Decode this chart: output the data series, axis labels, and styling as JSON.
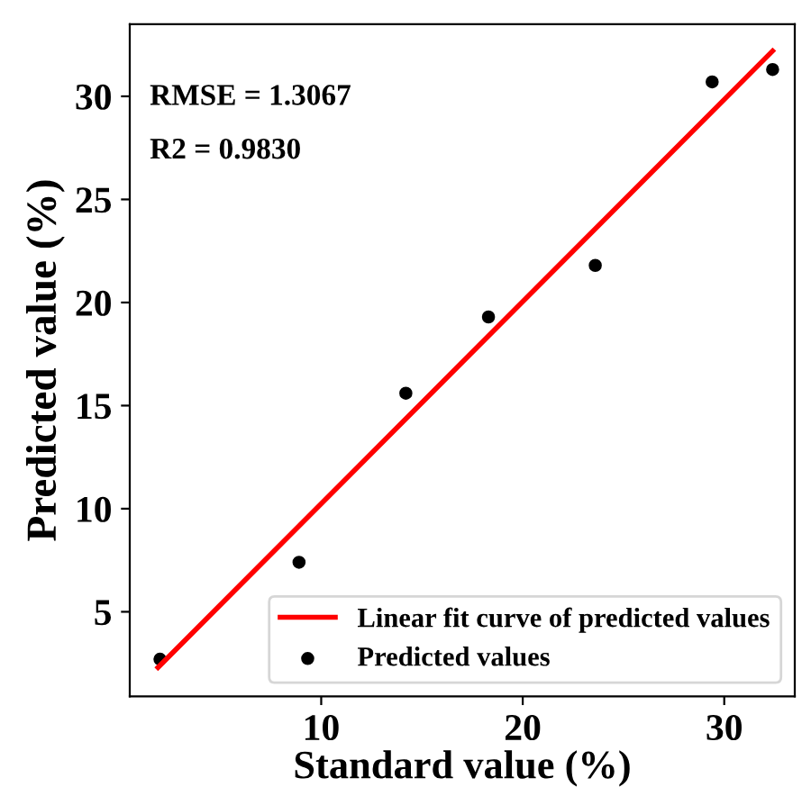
{
  "chart_data": {
    "type": "scatter",
    "xlabel": "Standard value (%)",
    "ylabel": "Predicted value (%)",
    "annotations": [
      "RMSE = 1.3067",
      "R2 = 0.9830"
    ],
    "series": [
      {
        "name": "Linear fit curve of predicted values",
        "type": "line",
        "color": "#ff0000",
        "x": [
          1.9,
          32.4
        ],
        "values": [
          2.3,
          32.2
        ],
        "marker": "none",
        "line_style": "solid"
      },
      {
        "name": "Predicted values",
        "color": "#000000",
        "x": [
          2.0,
          8.9,
          14.2,
          18.3,
          23.6,
          29.4,
          32.4
        ],
        "values": [
          2.7,
          7.4,
          15.6,
          19.3,
          21.8,
          30.7,
          31.3
        ],
        "marker": "circle"
      }
    ],
    "xlim": [
      0.5,
      33.5
    ],
    "ylim": [
      0.9,
      33.5
    ],
    "xticks": [
      10,
      20,
      30
    ],
    "yticks": [
      5,
      10,
      15,
      20,
      25,
      30
    ],
    "grid": false,
    "legend": "bottom right"
  }
}
